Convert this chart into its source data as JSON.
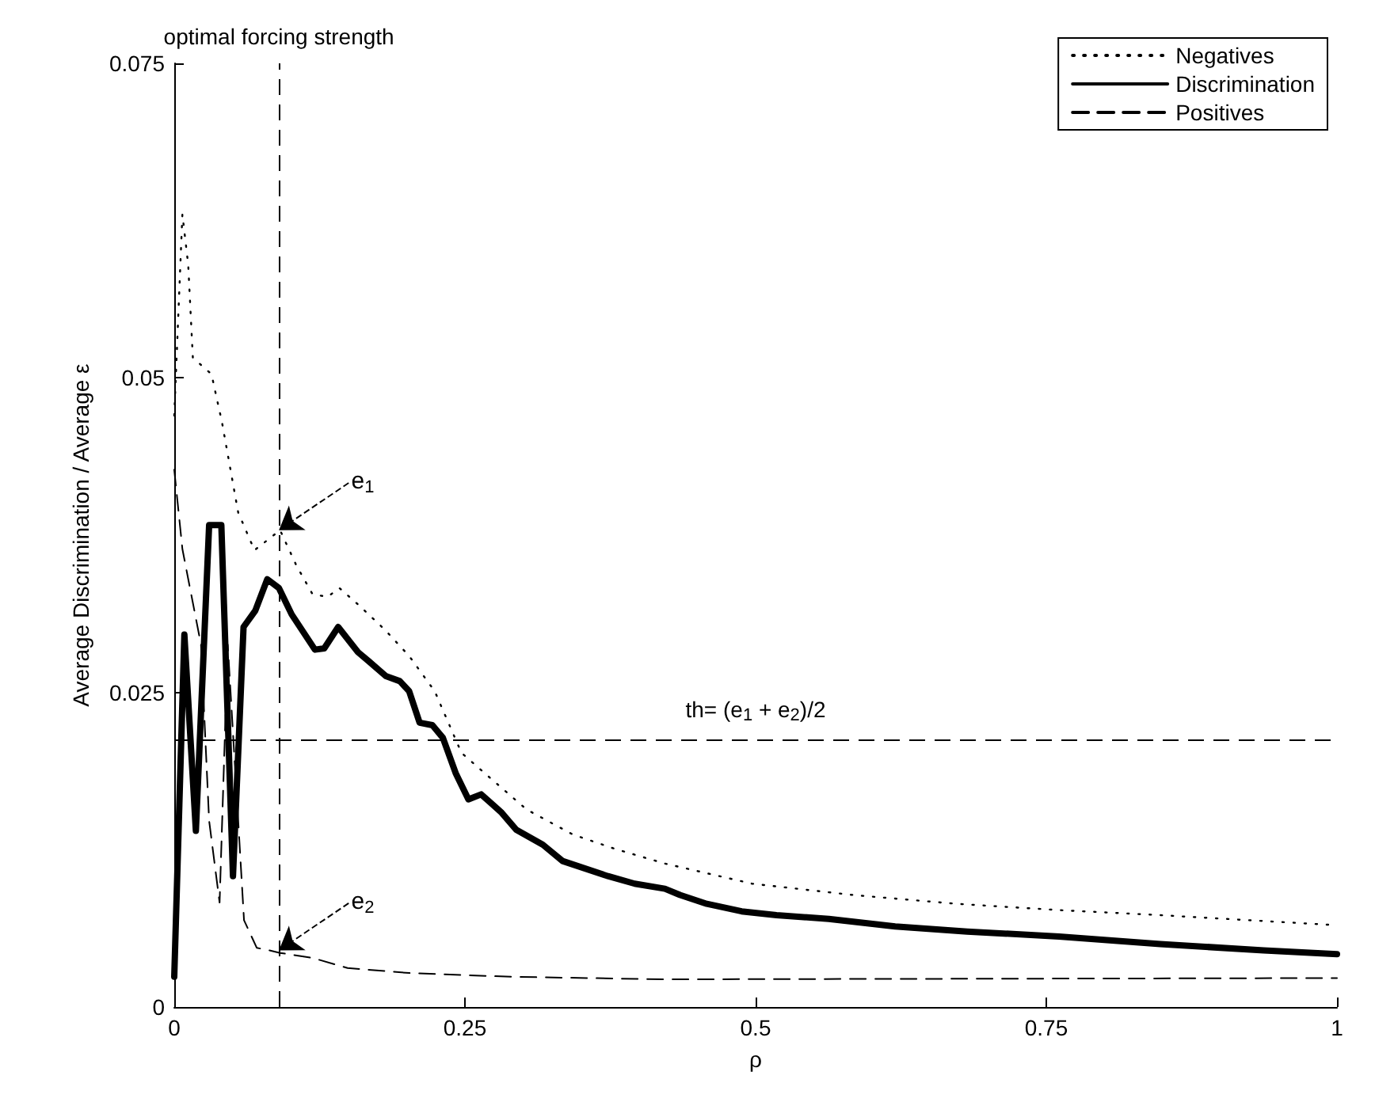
{
  "chart_data": {
    "type": "line",
    "xlabel": "ρ",
    "ylabel": "Average Discrimination / Average ε",
    "xlim": [
      0,
      1
    ],
    "xticks": [
      0,
      0.25,
      0.5,
      0.75,
      1
    ],
    "ylim": [
      0,
      0.075
    ],
    "yticks": [
      0,
      0.025,
      0.05,
      0.075
    ],
    "grid": false,
    "legend": "top right",
    "marker": "none",
    "series": [
      {
        "name": "Negatives",
        "color": "#000000",
        "line_style": "dotted",
        "x": [
          0,
          0.007,
          0.012,
          0.016,
          0.032,
          0.041,
          0.055,
          0.069,
          0.091,
          0.105,
          0.119,
          0.132,
          0.142,
          0.158,
          0.181,
          0.202,
          0.224,
          0.247,
          0.273,
          0.303,
          0.343,
          0.378,
          0.422,
          0.497,
          0.584,
          0.673,
          0.761,
          0.848,
          1
        ],
        "values": [
          0.047,
          0.063,
          0.059,
          0.0516,
          0.0503,
          0.0465,
          0.0393,
          0.0363,
          0.0379,
          0.0351,
          0.0328,
          0.0326,
          0.0333,
          0.032,
          0.03,
          0.0279,
          0.0251,
          0.0202,
          0.0181,
          0.0157,
          0.0137,
          0.0126,
          0.0114,
          0.0098,
          0.0089,
          0.0082,
          0.0077,
          0.0073,
          0.0065
        ]
      },
      {
        "name": "Discrimination",
        "color": "#000000",
        "line_style": "solid",
        "x": [
          0,
          0.0087,
          0.0186,
          0.03,
          0.0405,
          0.0505,
          0.0596,
          0.0697,
          0.08,
          0.09,
          0.101,
          0.121,
          0.129,
          0.141,
          0.158,
          0.167,
          0.182,
          0.194,
          0.202,
          0.211,
          0.222,
          0.231,
          0.242,
          0.253,
          0.264,
          0.281,
          0.294,
          0.317,
          0.334,
          0.373,
          0.396,
          0.422,
          0.435,
          0.458,
          0.488,
          0.518,
          0.563,
          0.62,
          0.682,
          0.761,
          0.848,
          0.937,
          1
        ],
        "values": [
          0.0024,
          0.0296,
          0.014,
          0.0383,
          0.0383,
          0.0104,
          0.0302,
          0.0315,
          0.034,
          0.0333,
          0.0312,
          0.0284,
          0.0285,
          0.0302,
          0.0282,
          0.0275,
          0.0263,
          0.0259,
          0.0251,
          0.0226,
          0.0224,
          0.0214,
          0.0186,
          0.0165,
          0.0169,
          0.0155,
          0.0141,
          0.0129,
          0.0116,
          0.0104,
          0.0098,
          0.0094,
          0.0089,
          0.0082,
          0.0076,
          0.0073,
          0.007,
          0.0064,
          0.006,
          0.0056,
          0.005,
          0.0045,
          0.0042
        ]
      },
      {
        "name": "Positives",
        "color": "#000000",
        "line_style": "dashed",
        "x": [
          0,
          0.007,
          0.023,
          0.03,
          0.039,
          0.046,
          0.055,
          0.06,
          0.071,
          0.082,
          0.091,
          0.119,
          0.149,
          0.202,
          0.29,
          0.422,
          1
        ],
        "values": [
          0.0427,
          0.0364,
          0.0288,
          0.0148,
          0.0083,
          0.0288,
          0.0148,
          0.0069,
          0.0047,
          0.0045,
          0.0043,
          0.0039,
          0.0031,
          0.0027,
          0.0024,
          0.0022,
          0.0023
        ]
      }
    ],
    "ref_lines": [
      {
        "axis": "x",
        "value": 0.09,
        "label": "optimal forcing strength",
        "line_style": "dashed"
      },
      {
        "axis": "y",
        "value": 0.0212,
        "label": "th= (e$_{1}$ + e$_{2}$)/2",
        "line_style": "dashed"
      }
    ],
    "annotations": [
      {
        "text": "e$_{1}$",
        "x": 0.09,
        "y": 0.0379
      },
      {
        "text": "e$_{2}$",
        "x": 0.09,
        "y": 0.0045
      }
    ]
  }
}
